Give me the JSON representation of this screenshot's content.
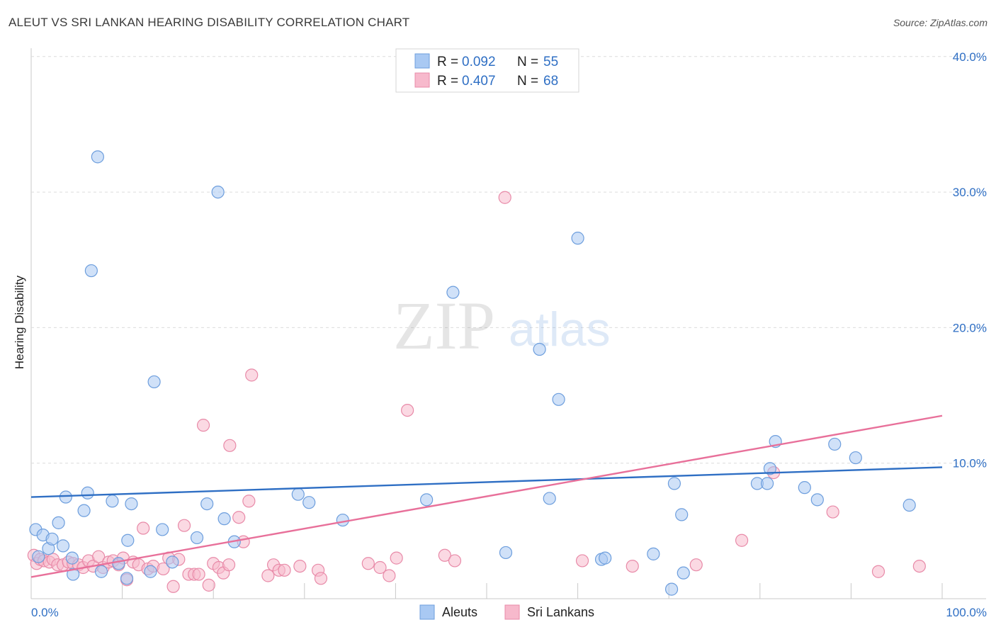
{
  "header": {
    "title": "ALEUT VS SRI LANKAN HEARING DISABILITY CORRELATION CHART",
    "source": "Source: ZipAtlas.com"
  },
  "watermark": {
    "zip": "ZIP",
    "atlas": "atlas"
  },
  "colors": {
    "aleut_fill": "#a9c9f3",
    "aleut_stroke": "#6d9edd",
    "aleut_line": "#2f6fc4",
    "srilankan_fill": "#f7b9cc",
    "srilankan_stroke": "#e88aa8",
    "srilankan_line": "#e8709a",
    "value_text": "#2f6fc4"
  },
  "legend": {
    "rows": [
      {
        "r_label": "R = ",
        "r_value": "0.092",
        "n_label": "N = ",
        "n_value": "55"
      },
      {
        "r_label": "R = ",
        "r_value": "0.407",
        "n_label": "N = ",
        "n_value": "68"
      }
    ]
  },
  "chart_data": {
    "type": "scatter",
    "title": "ALEUT VS SRI LANKAN HEARING DISABILITY CORRELATION CHART",
    "xlabel": "",
    "ylabel": "Hearing Disability",
    "xlim": [
      0,
      100
    ],
    "ylim": [
      0,
      40
    ],
    "x_tick_labels": [
      "0.0%",
      "100.0%"
    ],
    "y_ticks": [
      10,
      20,
      30,
      40
    ],
    "y_tick_labels": [
      "10.0%",
      "20.0%",
      "30.0%",
      "40.0%"
    ],
    "grid": true,
    "legend_position": "top-center",
    "series": [
      {
        "name": "Aleuts",
        "r": 0.092,
        "n": 55,
        "trend": {
          "x0": 0,
          "y0": 7.5,
          "x1": 100,
          "y1": 9.7
        },
        "points": [
          [
            0.5,
            5.1
          ],
          [
            0.8,
            3.1
          ],
          [
            1.3,
            4.7
          ],
          [
            1.9,
            3.7
          ],
          [
            2.3,
            4.4
          ],
          [
            3.0,
            5.6
          ],
          [
            3.5,
            3.9
          ],
          [
            3.8,
            7.5
          ],
          [
            4.5,
            3.0
          ],
          [
            4.6,
            1.8
          ],
          [
            5.8,
            6.5
          ],
          [
            6.2,
            7.8
          ],
          [
            6.6,
            24.2
          ],
          [
            7.3,
            32.6
          ],
          [
            7.7,
            2.0
          ],
          [
            8.9,
            7.2
          ],
          [
            9.6,
            2.6
          ],
          [
            10.5,
            1.5
          ],
          [
            10.6,
            4.3
          ],
          [
            11.0,
            7.0
          ],
          [
            13.1,
            2.0
          ],
          [
            13.5,
            16.0
          ],
          [
            14.4,
            5.1
          ],
          [
            15.5,
            2.7
          ],
          [
            18.2,
            4.5
          ],
          [
            19.3,
            7.0
          ],
          [
            20.5,
            30.0
          ],
          [
            21.2,
            5.9
          ],
          [
            22.3,
            4.2
          ],
          [
            29.3,
            7.7
          ],
          [
            30.5,
            7.1
          ],
          [
            34.2,
            5.8
          ],
          [
            43.4,
            7.3
          ],
          [
            46.3,
            22.6
          ],
          [
            52.1,
            3.4
          ],
          [
            55.8,
            18.4
          ],
          [
            56.9,
            7.4
          ],
          [
            57.9,
            14.7
          ],
          [
            60.0,
            26.6
          ],
          [
            62.6,
            2.9
          ],
          [
            63.0,
            3.0
          ],
          [
            68.3,
            3.3
          ],
          [
            70.3,
            0.7
          ],
          [
            70.6,
            8.5
          ],
          [
            71.4,
            6.2
          ],
          [
            71.6,
            1.9
          ],
          [
            79.7,
            8.5
          ],
          [
            80.8,
            8.5
          ],
          [
            81.1,
            9.6
          ],
          [
            81.7,
            11.6
          ],
          [
            84.9,
            8.2
          ],
          [
            86.3,
            7.3
          ],
          [
            88.2,
            11.4
          ],
          [
            90.5,
            10.4
          ],
          [
            96.4,
            6.9
          ]
        ]
      },
      {
        "name": "Sri Lankans",
        "r": 0.407,
        "n": 68,
        "trend": {
          "x0": 0,
          "y0": 1.6,
          "x1": 100,
          "y1": 13.5
        },
        "points": [
          [
            0.3,
            3.2
          ],
          [
            0.6,
            2.6
          ],
          [
            1.0,
            2.9
          ],
          [
            1.4,
            2.8
          ],
          [
            2.0,
            2.7
          ],
          [
            2.4,
            2.9
          ],
          [
            2.9,
            2.5
          ],
          [
            3.5,
            2.5
          ],
          [
            4.1,
            2.7
          ],
          [
            4.6,
            2.6
          ],
          [
            5.2,
            2.5
          ],
          [
            5.7,
            2.3
          ],
          [
            6.3,
            2.8
          ],
          [
            6.8,
            2.4
          ],
          [
            7.4,
            3.1
          ],
          [
            7.9,
            2.3
          ],
          [
            8.5,
            2.7
          ],
          [
            9.0,
            2.8
          ],
          [
            9.6,
            2.5
          ],
          [
            10.1,
            3.0
          ],
          [
            10.5,
            1.4
          ],
          [
            11.2,
            2.7
          ],
          [
            11.8,
            2.5
          ],
          [
            12.3,
            5.2
          ],
          [
            12.8,
            2.2
          ],
          [
            13.4,
            2.4
          ],
          [
            14.5,
            2.2
          ],
          [
            15.1,
            3.0
          ],
          [
            15.6,
            0.9
          ],
          [
            16.2,
            2.9
          ],
          [
            16.8,
            5.4
          ],
          [
            17.3,
            1.8
          ],
          [
            17.9,
            1.8
          ],
          [
            18.4,
            1.8
          ],
          [
            18.9,
            12.8
          ],
          [
            19.5,
            1.0
          ],
          [
            20.0,
            2.6
          ],
          [
            20.6,
            2.3
          ],
          [
            21.1,
            1.9
          ],
          [
            21.7,
            2.5
          ],
          [
            21.8,
            11.3
          ],
          [
            22.8,
            6.0
          ],
          [
            23.3,
            4.2
          ],
          [
            23.9,
            7.2
          ],
          [
            24.2,
            16.5
          ],
          [
            26.0,
            1.7
          ],
          [
            26.6,
            2.5
          ],
          [
            27.2,
            2.1
          ],
          [
            27.8,
            2.1
          ],
          [
            29.5,
            2.4
          ],
          [
            31.5,
            2.1
          ],
          [
            31.8,
            1.5
          ],
          [
            37.0,
            2.6
          ],
          [
            38.3,
            2.3
          ],
          [
            39.3,
            1.7
          ],
          [
            40.1,
            3.0
          ],
          [
            41.3,
            13.9
          ],
          [
            45.4,
            3.2
          ],
          [
            46.5,
            2.8
          ],
          [
            52.0,
            29.6
          ],
          [
            60.5,
            2.8
          ],
          [
            66.0,
            2.4
          ],
          [
            73.0,
            2.5
          ],
          [
            78.0,
            4.3
          ],
          [
            81.5,
            9.3
          ],
          [
            88.0,
            6.4
          ],
          [
            93.0,
            2.0
          ],
          [
            97.5,
            2.4
          ]
        ]
      }
    ]
  },
  "bottom_legend": {
    "items": [
      {
        "label": "Aleuts"
      },
      {
        "label": "Sri Lankans"
      }
    ]
  }
}
